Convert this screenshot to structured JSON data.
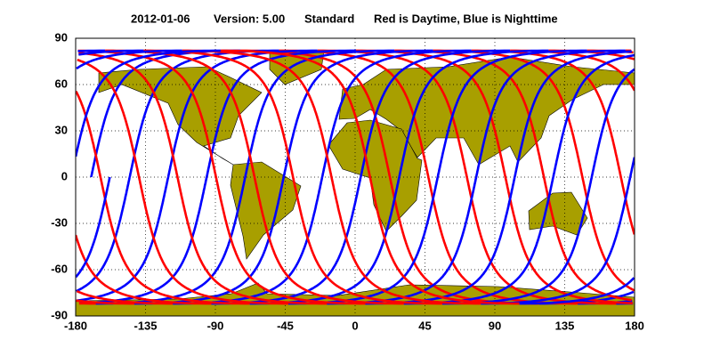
{
  "chart_data": {
    "type": "map",
    "title": {
      "date": "2012-01-06",
      "version": "Version: 5.00",
      "mode": "Standard",
      "note": "Red is Daytime, Blue is Nighttime"
    },
    "xlim": [
      -180,
      180
    ],
    "xticks": [
      -180,
      -135,
      -90,
      -45,
      0,
      45,
      90,
      135,
      180
    ],
    "ylim": [
      -90,
      90
    ],
    "yticks": [
      90,
      60,
      30,
      0,
      -30,
      -60,
      -90
    ],
    "grid": true,
    "series": [
      {
        "name": "Daytime",
        "color": "#ff0000"
      },
      {
        "name": "Nighttime",
        "color": "#0000ff"
      }
    ]
  }
}
